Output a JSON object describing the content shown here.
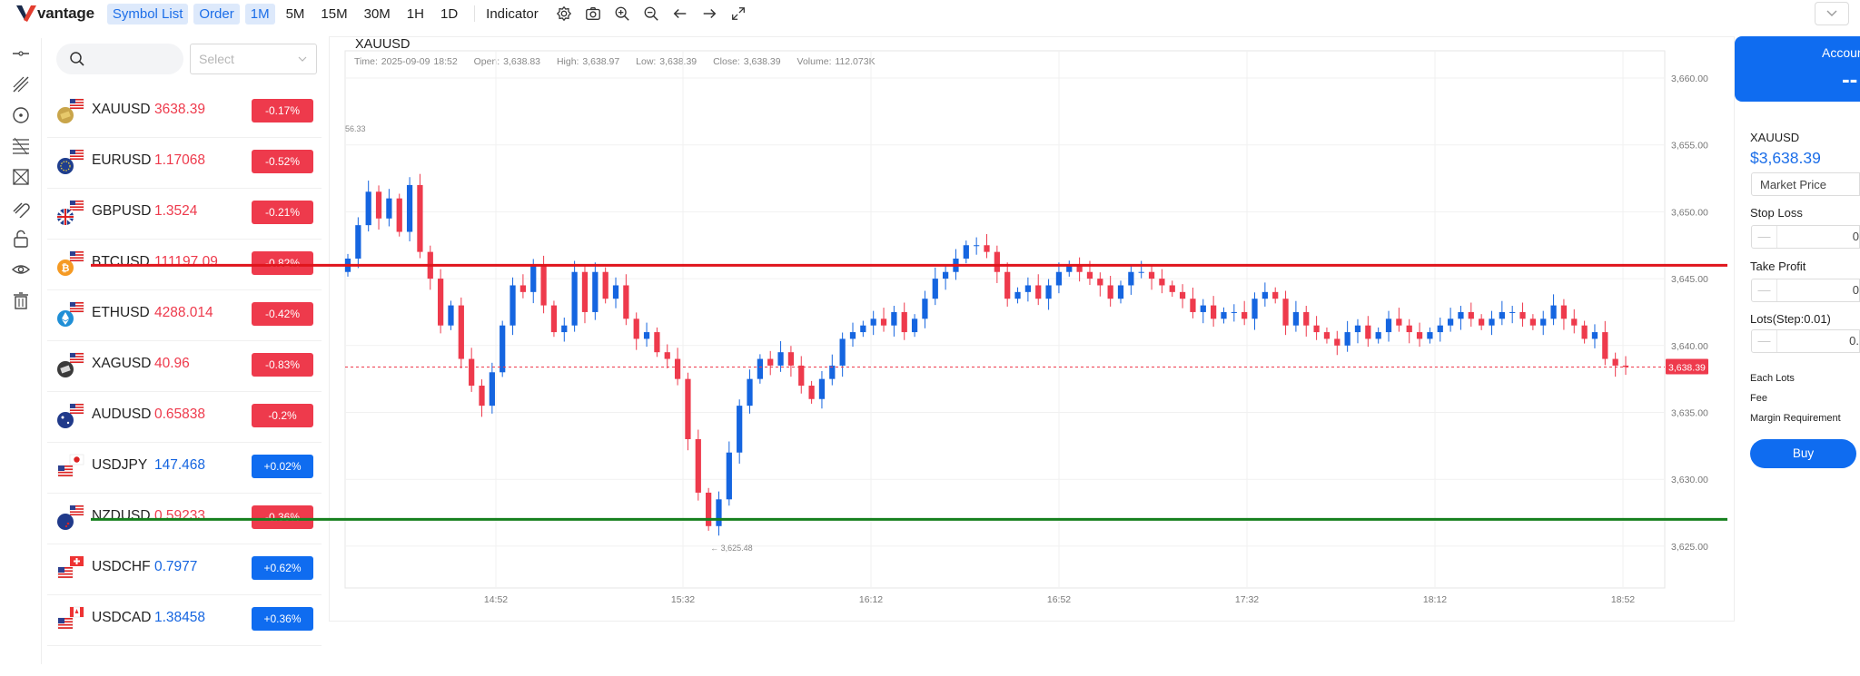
{
  "app": {
    "logo_text": "vantage"
  },
  "toolbar": {
    "symbol_list": "Symbol List",
    "order": "Order",
    "timeframes": [
      "1M",
      "5M",
      "15M",
      "30M",
      "1H",
      "1D"
    ],
    "active_timeframe": "1M",
    "indicator": "Indicator"
  },
  "symbol_panel": {
    "search_placeholder": "",
    "select_placeholder": "Select",
    "symbols": [
      {
        "symbol": "XAUUSD",
        "price": "3638.39",
        "change": "-0.17%",
        "direction": "down",
        "icon": "gold-bars-icon"
      },
      {
        "symbol": "EURUSD",
        "price": "1.17068",
        "change": "-0.52%",
        "direction": "down",
        "icon": "eu-flag-icon"
      },
      {
        "symbol": "GBPUSD",
        "price": "1.3524",
        "change": "-0.21%",
        "direction": "down",
        "icon": "uk-flag-icon"
      },
      {
        "symbol": "BTCUSD",
        "price": "111197.09",
        "change": "-0.82%",
        "direction": "down",
        "icon": "bitcoin-icon"
      },
      {
        "symbol": "ETHUSD",
        "price": "4288.014",
        "change": "-0.42%",
        "direction": "down",
        "icon": "ethereum-icon"
      },
      {
        "symbol": "XAGUSD",
        "price": "40.96",
        "change": "-0.83%",
        "direction": "down",
        "icon": "silver-bars-icon"
      },
      {
        "symbol": "AUDUSD",
        "price": "0.65838",
        "change": "-0.2%",
        "direction": "down",
        "icon": "au-flag-icon"
      },
      {
        "symbol": "USDJPY",
        "price": "147.468",
        "change": "+0.02%",
        "direction": "up",
        "icon": "jp-flag-icon"
      },
      {
        "symbol": "NZDUSD",
        "price": "0.59233",
        "change": "-0.36%",
        "direction": "down",
        "icon": "nz-flag-icon"
      },
      {
        "symbol": "USDCHF",
        "price": "0.7977",
        "change": "+0.62%",
        "direction": "up",
        "icon": "ch-flag-icon"
      },
      {
        "symbol": "USDCAD",
        "price": "1.38458",
        "change": "+0.36%",
        "direction": "up",
        "icon": "ca-flag-icon"
      }
    ]
  },
  "chart_header": {
    "symbol": "XAUUSD",
    "time": "Time: 2025-09-09 18:52",
    "open": "Open: 3,638.83",
    "high": "High: 3,638.97",
    "low": "Low: 3,638.39",
    "close": "Close: 3,638.39",
    "volume": "Volume: 112.073K"
  },
  "chart_data": {
    "type": "candlestick",
    "symbol": "XAUUSD",
    "interval": "1M",
    "y_ticks": [
      "3,660.00",
      "3,655.00",
      "3,650.00",
      "3,645.00",
      "3,640.00",
      "3,635.00",
      "3,630.00",
      "3,625.00"
    ],
    "y_tick_values": [
      3660,
      3655,
      3650,
      3645,
      3640,
      3635,
      3630,
      3625
    ],
    "x_ticks": [
      "14:52",
      "15:32",
      "16:12",
      "16:52",
      "17:32",
      "18:12",
      "18:52"
    ],
    "ylim": [
      3621.5,
      3662
    ],
    "current_price": 3638.39,
    "current_price_label": "3,638.39",
    "low_marker_label": "3,625.48",
    "low_marker_value": 3625.48,
    "top_left_label": "56.33",
    "horizontal_lines": [
      {
        "value": 3646.0,
        "color": "#e0151c"
      },
      {
        "value": 3627.0,
        "color": "#16801e"
      }
    ],
    "up_color": "#1565e0",
    "down_color": "#ee3a4c",
    "close_series": [
      3646.5,
      3649,
      3651.5,
      3649.5,
      3651,
      3648.5,
      3652,
      3647,
      3645,
      3641.5,
      3643,
      3639,
      3637,
      3635.5,
      3638,
      3641.5,
      3644.5,
      3644,
      3646,
      3643,
      3641,
      3641.5,
      3645.5,
      3642.5,
      3645.5,
      3643.5,
      3644.5,
      3642,
      3640.5,
      3641,
      3639.5,
      3639,
      3637.5,
      3633,
      3629,
      3626.5,
      3628.5,
      3632,
      3635.5,
      3637.5,
      3639,
      3638.5,
      3639.5,
      3638.5,
      3637,
      3636,
      3637.5,
      3638.5,
      3640.5,
      3641,
      3641.5,
      3642,
      3641.5,
      3642.5,
      3641,
      3642,
      3643.5,
      3645,
      3645.5,
      3646.5,
      3647.5,
      3647.5,
      3647,
      3645.5,
      3643.5,
      3644,
      3644.5,
      3643.5,
      3644.5,
      3645.5,
      3646,
      3645.5,
      3645,
      3644.5,
      3643.5,
      3644.5,
      3645.5,
      3645.5,
      3645,
      3644.5,
      3644,
      3643.5,
      3642.5,
      3643,
      3642,
      3642.5,
      3642.5,
      3642,
      3643.5,
      3644,
      3643.5,
      3641.5,
      3642.5,
      3641.5,
      3641,
      3640.5,
      3640,
      3641,
      3641.5,
      3640.5,
      3641,
      3642,
      3641.5,
      3641,
      3640.5,
      3641,
      3641.5,
      3642,
      3642.5,
      3642,
      3641.5,
      3642,
      3642.5,
      3642.5,
      3642,
      3641.5,
      3642,
      3643,
      3642,
      3641.5,
      3640.5,
      3641,
      3639,
      3638.5,
      3638.4
    ]
  },
  "order_panel": {
    "account_label": "Accoun",
    "account_value": "--",
    "symbol": "XAUUSD",
    "price": "$3,638.39",
    "order_type": "Market Price",
    "stop_loss_label": "Stop Loss",
    "stop_loss_value": "0",
    "take_profit_label": "Take Profit",
    "take_profit_value": "0",
    "lots_label": "Lots(Step:0.01)",
    "lots_value": "0.",
    "minus": "—",
    "each_lots": "Each Lots",
    "fee": "Fee",
    "margin": "Margin Requirement",
    "buy": "Buy"
  }
}
